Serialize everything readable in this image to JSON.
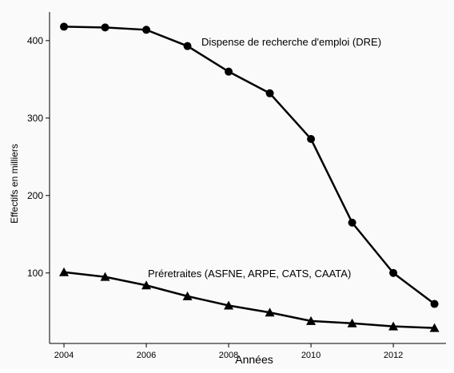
{
  "chart_data": {
    "type": "line",
    "x_label": "Années",
    "y_label": "Effectifs en milliers",
    "x": [
      2004,
      2005,
      2006,
      2007,
      2008,
      2009,
      2010,
      2011,
      2012,
      2013
    ],
    "series": [
      {
        "name": "Dispense de recherche d'emploi (DRE)",
        "color": "#000000",
        "marker": "circle",
        "values": [
          418,
          417,
          414,
          393,
          360,
          332,
          273,
          165,
          100,
          60
        ]
      },
      {
        "name": "Préretraites (ASFNE, ARPE, CATS, CAATA)",
        "color": "#000000",
        "marker": "triangle",
        "values": [
          101,
          95,
          84,
          70,
          58,
          49,
          38,
          35,
          31,
          29
        ]
      }
    ],
    "xlim": [
      2003.65,
      2013.28
    ],
    "xticks": [
      2004,
      2006,
      2008,
      2010,
      2012
    ],
    "ylim": [
      9,
      437
    ],
    "yticks": [
      100,
      200,
      300,
      400
    ],
    "grid": false
  }
}
